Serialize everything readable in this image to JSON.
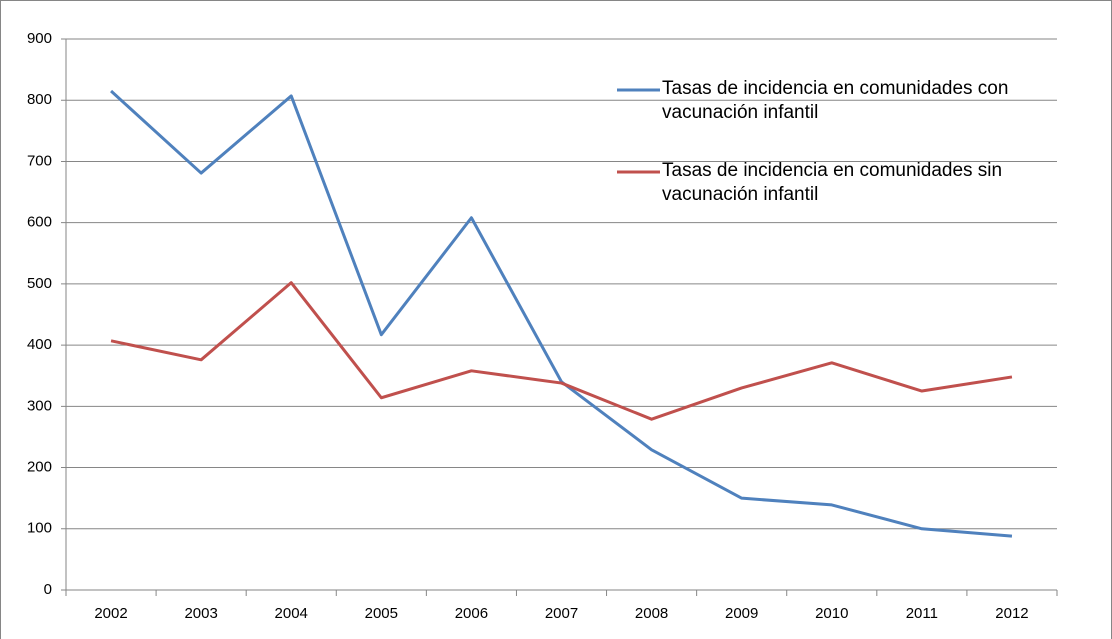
{
  "chart_data": {
    "type": "line",
    "categories": [
      "2002",
      "2003",
      "2004",
      "2005",
      "2006",
      "2007",
      "2008",
      "2009",
      "2010",
      "2011",
      "2012"
    ],
    "series": [
      {
        "name": "Tasas de incidencia en comunidades con vacunación infantil",
        "color": "#4f81bd",
        "values": [
          815,
          681,
          807,
          417,
          608,
          340,
          229,
          150,
          139,
          100,
          88
        ]
      },
      {
        "name": "Tasas de incidencia en comunidades sin vacunación infantil",
        "color": "#c0504d",
        "values": [
          407,
          376,
          502,
          314,
          358,
          338,
          279,
          330,
          371,
          325,
          348
        ]
      }
    ],
    "ylim": [
      0,
      900
    ],
    "yticks": [
      0,
      100,
      200,
      300,
      400,
      500,
      600,
      700,
      800,
      900
    ],
    "grid": true,
    "legend": "upper right"
  }
}
